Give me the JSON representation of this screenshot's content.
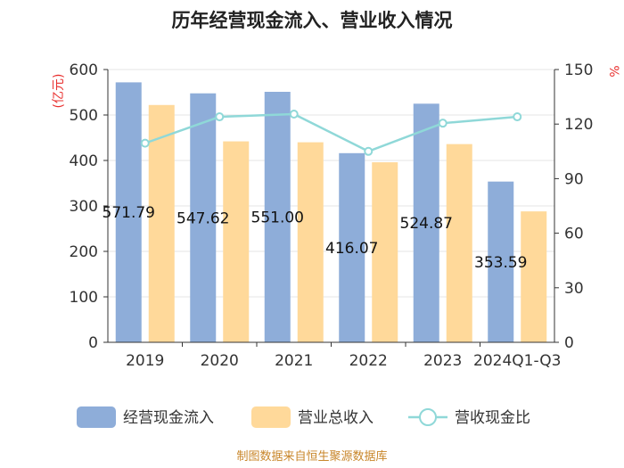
{
  "chart_data": {
    "type": "bar",
    "title": "历年经营现金流入、营业收入情况",
    "categories": [
      "2019",
      "2020",
      "2021",
      "2022",
      "2023",
      "2024Q1-Q3"
    ],
    "series": [
      {
        "name": "经营现金流入",
        "type": "bar",
        "axis": "left",
        "color": "#8eadd9",
        "values": [
          571.79,
          547.62,
          551.0,
          416.07,
          524.87,
          353.59
        ],
        "labels": [
          "571.79",
          "547.62",
          "551.00",
          "416.07",
          "524.87",
          "353.59"
        ]
      },
      {
        "name": "营业总收入",
        "type": "bar",
        "axis": "left",
        "color": "#ffd99a",
        "values": [
          522,
          442,
          440,
          396,
          436,
          288
        ]
      },
      {
        "name": "营收现金比",
        "type": "line",
        "axis": "right",
        "color": "#8fd8d8",
        "values": [
          109.5,
          124,
          125.5,
          105,
          120.5,
          124
        ]
      }
    ],
    "ylabel_left": "(亿元)",
    "ylabel_right": "%",
    "ylim_left": [
      0,
      600
    ],
    "ylim_right": [
      0,
      150
    ],
    "yticks_left": [
      "0",
      "100",
      "200",
      "300",
      "400",
      "500",
      "600"
    ],
    "yticks_right": [
      "0",
      "30",
      "60",
      "90",
      "120",
      "150"
    ],
    "legend_position": "bottom",
    "source": "制图数据来自恒生聚源数据库"
  }
}
